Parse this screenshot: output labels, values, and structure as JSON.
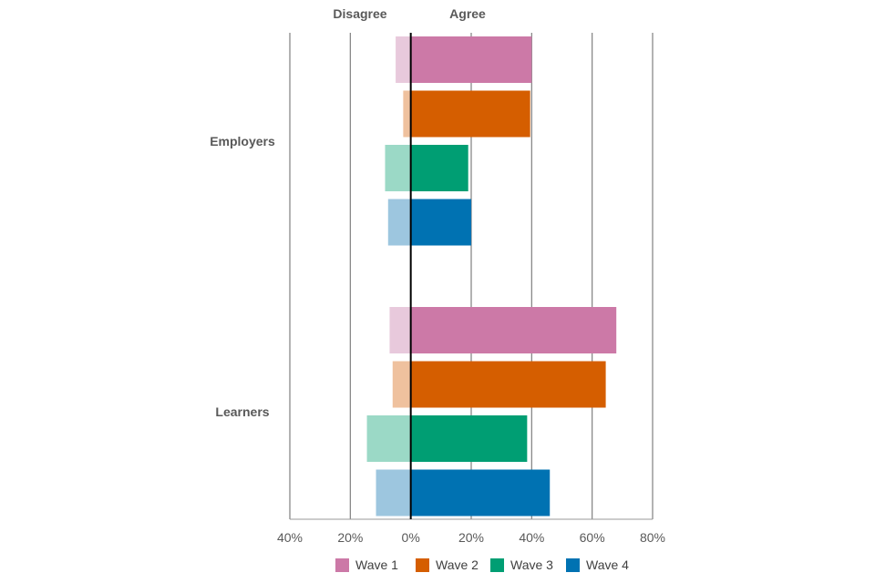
{
  "chart_data": {
    "type": "bar",
    "orientation": "horizontal-diverging",
    "header_labels": {
      "left": "Disagree",
      "right": "Agree"
    },
    "categories": [
      "Employers",
      "Learners"
    ],
    "x_ticks": [
      "40%",
      "20%",
      "0%",
      "20%",
      "40%",
      "60%",
      "80%"
    ],
    "xlim": [
      -40,
      80
    ],
    "grid": true,
    "legend_position": "bottom",
    "series": [
      {
        "name": "Wave 1",
        "color": "#CC79A7",
        "light_color": "#E8C9DC",
        "agree": [
          40,
          68
        ],
        "disagree": [
          5,
          7
        ]
      },
      {
        "name": "Wave 2",
        "color": "#D55E00",
        "light_color": "#EFC19E",
        "agree": [
          39.5,
          64.5
        ],
        "disagree": [
          2.5,
          6
        ]
      },
      {
        "name": "Wave 3",
        "color": "#009E73",
        "light_color": "#9BD9C6",
        "agree": [
          19,
          38.5
        ],
        "disagree": [
          8.5,
          14.5
        ]
      },
      {
        "name": "Wave 4",
        "color": "#0072B2",
        "light_color": "#9DC6DF",
        "agree": [
          20,
          46
        ],
        "disagree": [
          7.5,
          11.5
        ]
      }
    ]
  }
}
